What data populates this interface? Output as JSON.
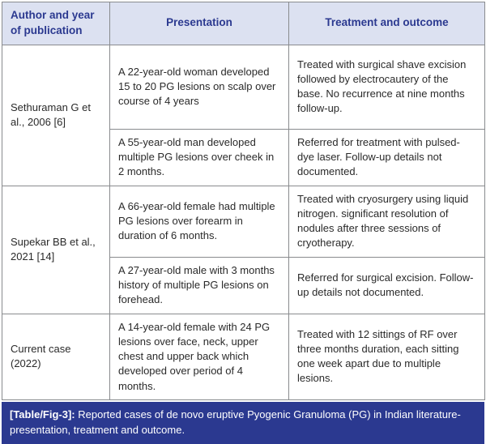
{
  "table": {
    "headers": {
      "author": "Author and year of publication",
      "presentation": "Presentation",
      "treatment": "Treatment and outcome"
    },
    "groups": [
      {
        "author": "Sethuraman G et al., 2006 [6]",
        "cases": [
          {
            "presentation": "A 22-year-old woman developed 15 to 20 PG lesions on scalp over course of 4 years",
            "treatment": "Treated with surgical shave excision followed by electrocautery of the base. No recurrence at nine months follow-up."
          },
          {
            "presentation": "A 55-year-old man developed multiple PG lesions over cheek in 2 months.",
            "treatment": "Referred for treatment with pulsed-dye laser. Follow-up details not documented."
          }
        ]
      },
      {
        "author": "Supekar BB et al., 2021 [14]",
        "cases": [
          {
            "presentation": "A 66-year-old female had multiple PG lesions over forearm in duration of 6 months.",
            "treatment": "Treated with cryosurgery using liquid nitrogen. significant resolution of nodules after three sessions of cryotherapy."
          },
          {
            "presentation": "A 27-year-old male with 3 months history of multiple PG lesions on forehead.",
            "treatment": "Referred for surgical excision. Follow-up details not documented."
          }
        ]
      },
      {
        "author": "Current case (2022)",
        "cases": [
          {
            "presentation": "A 14-year-old female with 24 PG lesions over face, neck, upper chest and upper back which developed over period of 4 months.",
            "treatment": "Treated with 12 sittings of RF over three months duration, each sitting one week apart due to multiple lesions."
          }
        ]
      }
    ],
    "caption": {
      "label": "[Table/Fig-3]:",
      "text": " Reported cases of de novo eruptive Pyogenic Granuloma (PG) in Indian literature- presentation, treatment and outcome."
    }
  },
  "colors": {
    "header_bg": "#dce1f1",
    "header_text": "#2b3990",
    "caption_bg": "#2b3990",
    "caption_text": "#ffffff",
    "border": "#898b8e"
  }
}
